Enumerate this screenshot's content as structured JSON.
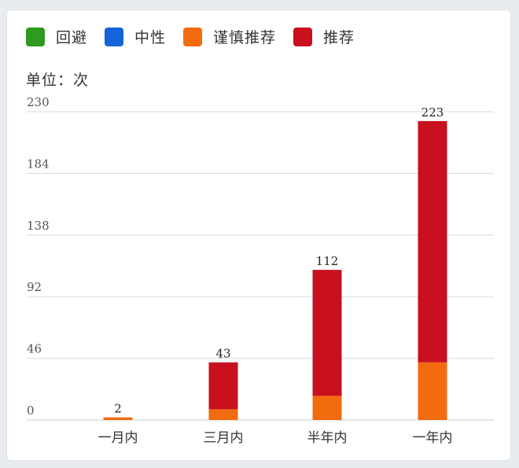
{
  "legend": [
    {
      "name": "回避",
      "color": "#2e9a1f"
    },
    {
      "name": "中性",
      "color": "#1463d8"
    },
    {
      "name": "谨慎推荐",
      "color": "#f26b0f"
    },
    {
      "name": "推荐",
      "color": "#c8101f"
    }
  ],
  "unit_label": "单位：次",
  "chart_data": {
    "type": "bar",
    "stacked": true,
    "categories": [
      "一月内",
      "三月内",
      "半年内",
      "一年内"
    ],
    "series": [
      {
        "name": "回避",
        "color": "#2e9a1f",
        "values": [
          0,
          0,
          0,
          0
        ]
      },
      {
        "name": "中性",
        "color": "#1463d8",
        "values": [
          0,
          0,
          0,
          0
        ]
      },
      {
        "name": "谨慎推荐",
        "color": "#f26b0f",
        "values": [
          2,
          8,
          18,
          43
        ]
      },
      {
        "name": "推荐",
        "color": "#c8101f",
        "values": [
          0,
          35,
          94,
          180
        ]
      }
    ],
    "totals": [
      2,
      43,
      112,
      223
    ],
    "yticks": [
      0,
      46,
      92,
      138,
      184,
      230
    ],
    "ylim": [
      0,
      230
    ],
    "grid": true,
    "legend_position": "top-left"
  }
}
